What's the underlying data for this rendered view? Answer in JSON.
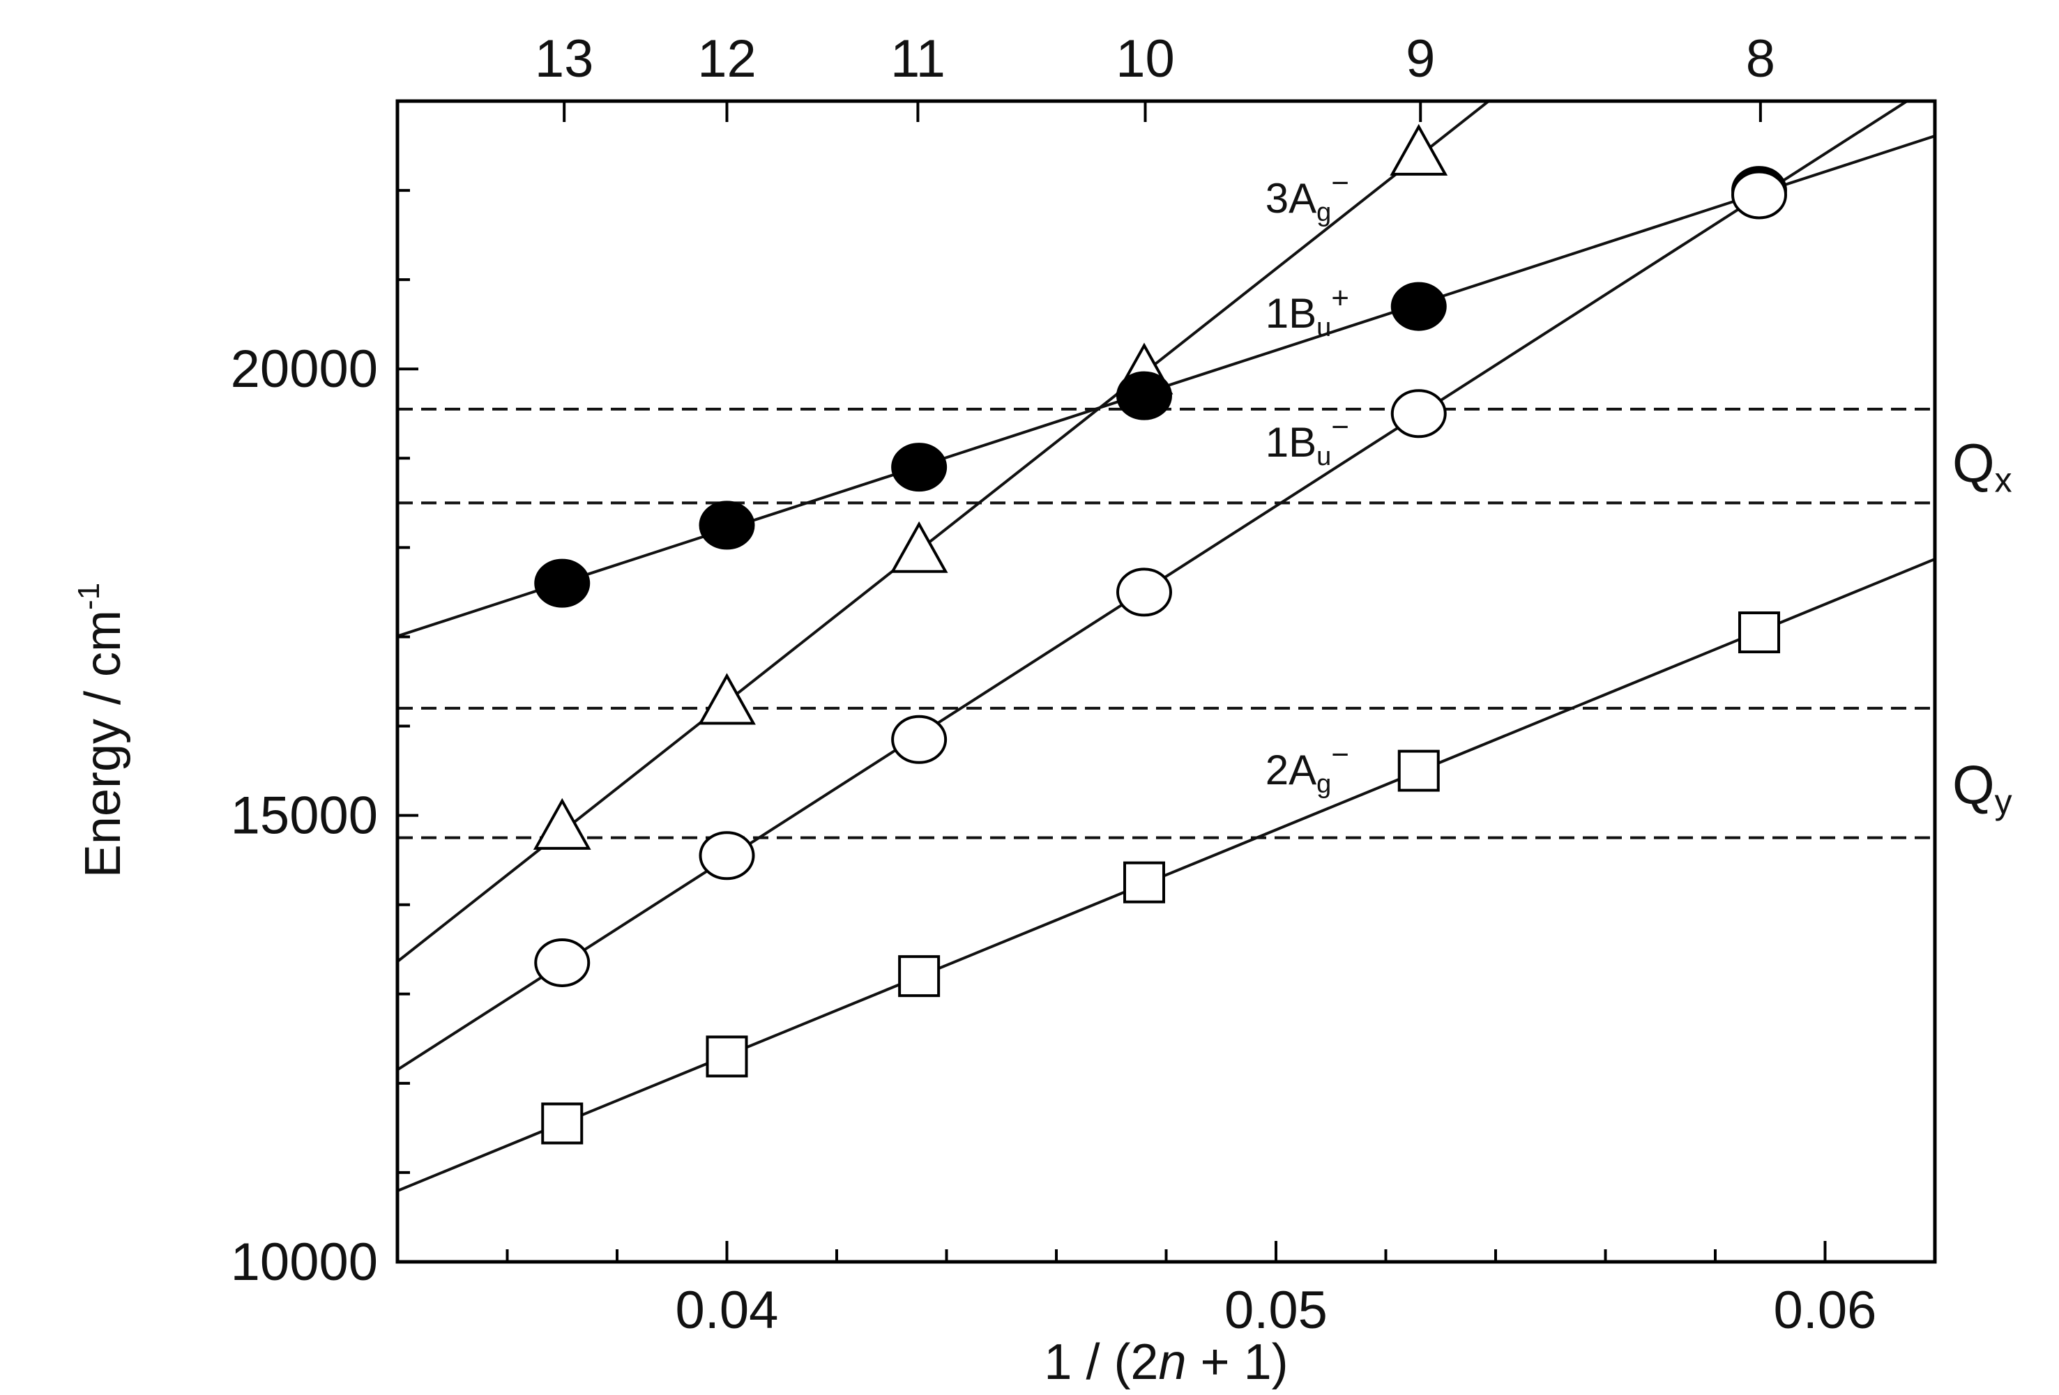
{
  "chart_data": {
    "type": "line",
    "x_axis": {
      "label_parts": [
        "1 / (2",
        "n",
        " + 1)"
      ],
      "range": [
        0.034,
        0.062
      ],
      "ticks": [
        {
          "value": 0.04,
          "label": "0.04"
        },
        {
          "value": 0.05,
          "label": "0.05"
        },
        {
          "value": 0.06,
          "label": "0.06"
        }
      ],
      "minor_step": 0.002
    },
    "y_axis": {
      "label": "Energy / cm",
      "label_sup": "-1",
      "range": [
        10000,
        23000
      ],
      "ticks": [
        {
          "value": 10000,
          "label": "10000"
        },
        {
          "value": 15000,
          "label": "15000"
        },
        {
          "value": 20000,
          "label": "20000"
        }
      ],
      "minor_step": 1000
    },
    "top_axis": {
      "ticks": [
        {
          "n": 13,
          "label": "13"
        },
        {
          "n": 12,
          "label": "12"
        },
        {
          "n": 11,
          "label": "11"
        },
        {
          "n": 10,
          "label": "10"
        },
        {
          "n": 9,
          "label": "9"
        },
        {
          "n": 8,
          "label": "8"
        }
      ]
    },
    "series": [
      {
        "name": "3Ag−",
        "label": {
          "main": "3A",
          "sub": "g",
          "sup": "−"
        },
        "marker": "triangle-open",
        "x": [
          0.037,
          0.04,
          0.0435,
          0.0476,
          0.0526
        ],
        "y": [
          14850,
          16250,
          17950,
          19950,
          22400
        ],
        "fit_x": [
          0.034,
          0.0545
        ]
      },
      {
        "name": "1Bu+",
        "label": {
          "main": "1B",
          "sub": "u",
          "sup": "+"
        },
        "marker": "circle-filled",
        "x": [
          0.037,
          0.04,
          0.0435,
          0.0476,
          0.0526,
          0.0588
        ],
        "y": [
          17600,
          18250,
          18900,
          19700,
          20700,
          22000
        ],
        "fit_x": [
          0.034,
          0.062
        ]
      },
      {
        "name": "1Bu−",
        "label": {
          "main": "1B",
          "sub": "u",
          "sup": "−"
        },
        "marker": "circle-open",
        "x": [
          0.037,
          0.04,
          0.0435,
          0.0476,
          0.0526,
          0.0588
        ],
        "y": [
          13350,
          14550,
          15850,
          17500,
          19500,
          21950
        ],
        "fit_x": [
          0.034,
          0.062
        ]
      },
      {
        "name": "2Ag−",
        "label": {
          "main": "2A",
          "sub": "g",
          "sup": "−"
        },
        "marker": "square-open",
        "x": [
          0.037,
          0.04,
          0.0435,
          0.0476,
          0.0526,
          0.0588
        ],
        "y": [
          11550,
          12300,
          13200,
          14250,
          15500,
          17050
        ],
        "fit_x": [
          0.034,
          0.062
        ]
      }
    ],
    "reference_lines": [
      {
        "y": 19550,
        "style": "dashed",
        "band": "Qx"
      },
      {
        "y": 18500,
        "style": "dashed",
        "band": "Qx"
      },
      {
        "y": 16200,
        "style": "dashed",
        "band": "Qy"
      },
      {
        "y": 14750,
        "style": "dashed",
        "band": "Qy"
      }
    ],
    "band_labels": [
      {
        "main": "Q",
        "sub": "x",
        "y": 18950
      },
      {
        "main": "Q",
        "sub": "y",
        "y": 15350
      }
    ],
    "grid": false,
    "legend": "none"
  }
}
